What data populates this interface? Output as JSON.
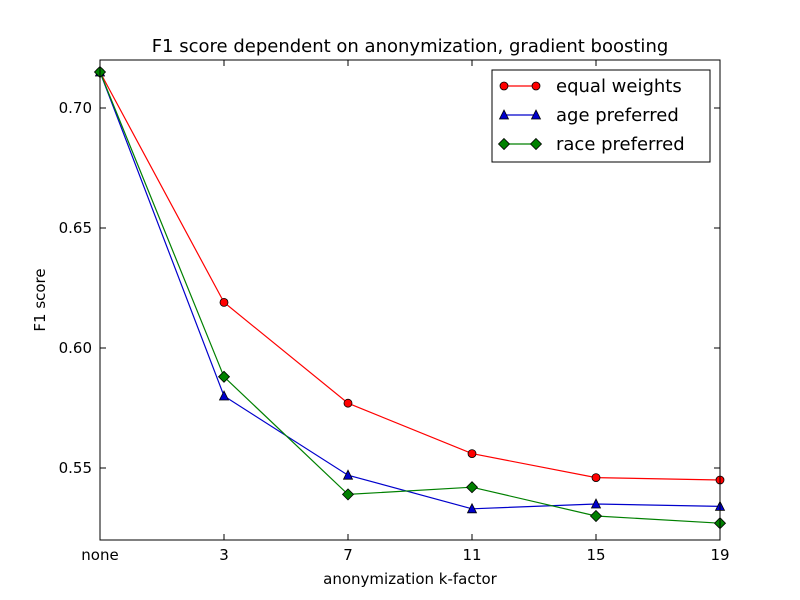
{
  "chart_data": {
    "type": "line",
    "title": "F1 score dependent on anonymization, gradient boosting",
    "xlabel": "anonymization k-factor",
    "ylabel": "F1 score",
    "categories": [
      "none",
      "3",
      "7",
      "11",
      "15",
      "19"
    ],
    "ylim": [
      0.52,
      0.72
    ],
    "yticks": [
      "0.55",
      "0.60",
      "0.65",
      "0.70"
    ],
    "legend_position": "top-right",
    "grid": false,
    "series": [
      {
        "name": "equal weights",
        "color": "#ff0000",
        "marker": "circle",
        "values": [
          0.715,
          0.619,
          0.577,
          0.556,
          0.546,
          0.545
        ]
      },
      {
        "name": "age preferred",
        "color": "#0000cc",
        "marker": "triangle",
        "values": [
          0.715,
          0.58,
          0.547,
          0.533,
          0.535,
          0.534
        ]
      },
      {
        "name": "race preferred",
        "color": "#008000",
        "marker": "diamond",
        "values": [
          0.715,
          0.588,
          0.539,
          0.542,
          0.53,
          0.527
        ]
      }
    ]
  }
}
